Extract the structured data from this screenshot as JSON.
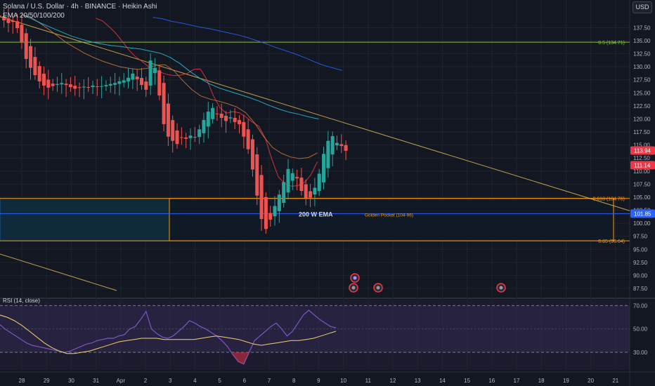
{
  "header": {
    "symbol_line": "Solana / U.S. Dollar · 4h · BINANCE · Heikin Ashi",
    "ema_line": "EMA 20/50/100/200",
    "currency": "USD"
  },
  "chart_data": {
    "type": "candlestick",
    "title": "Solana / U.S. Dollar · 4h · BINANCE · Heikin Ashi",
    "x_ticks": [
      "28",
      "29",
      "30",
      "31",
      "Apr",
      "2",
      "3",
      "4",
      "5",
      "6",
      "7",
      "8",
      "9",
      "10",
      "11",
      "12",
      "13",
      "14",
      "15",
      "16",
      "17",
      "18",
      "19",
      "20",
      "21"
    ],
    "price_ticks": [
      "137.50",
      "135.00",
      "132.50",
      "130.00",
      "127.50",
      "125.00",
      "122.50",
      "120.00",
      "117.50",
      "115.00",
      "112.50",
      "110.00",
      "107.50",
      "105.00",
      "102.50",
      "100.00",
      "97.50",
      "95.00",
      "92.50",
      "90.00",
      "87.50"
    ],
    "ylim": [
      86,
      140
    ],
    "current_price_tags": [
      {
        "value": "113.94",
        "color": "#f23645"
      },
      {
        "value": "111.14",
        "color": "#f23645"
      },
      {
        "value": "101.85",
        "color": "#2962ff"
      }
    ],
    "levels": [
      {
        "label": "0.5 (134.71)",
        "value": 134.71,
        "color": "#8bc34a"
      },
      {
        "label": "0.618 (104.76)",
        "value": 104.76,
        "color": "#ff9800"
      },
      {
        "label": "0.65 (96.64)",
        "value": 96.64,
        "color": "#ff9800"
      }
    ],
    "annotations": [
      {
        "text": "200 W EMA"
      },
      {
        "text": "Golden Pocket (104-96)"
      }
    ],
    "colors": {
      "up": "#26a69a",
      "down": "#ef5350",
      "ema20": "#f23645",
      "ema50": "#c97b3c",
      "ema100": "#26c6da",
      "ema200": "#2962ff",
      "rsi": "#7e57c2",
      "rsi_ma": "#f5d36b"
    },
    "candles_close": [
      139.6,
      138.9,
      138.4,
      138.6,
      137.4,
      134.8,
      131.5,
      129.8,
      128.4,
      127.2,
      126.4,
      126.0,
      126.3,
      126.7,
      126.9,
      126.5,
      126.1,
      125.8,
      126.0,
      126.2,
      126.1,
      126.4,
      126.2,
      126.3,
      126.5,
      126.7,
      126.9,
      127.2,
      127.4,
      127.9,
      128.7,
      127.6,
      126.5,
      125.6,
      131.2,
      129.8,
      124.5,
      119.0,
      116.6,
      115.8,
      115.2,
      116.4,
      116.2,
      116.8,
      116.5,
      118.0,
      119.8,
      121.4,
      122.1,
      121.0,
      120.2,
      119.6,
      120.3,
      119.4,
      119.0,
      116.6,
      114.2,
      110.3,
      105.3,
      100.8,
      98.9,
      100.7,
      103.3,
      105.5,
      107.9,
      110.4,
      109.6,
      108.6,
      106.2,
      104.8,
      104.9,
      106.8,
      109.5,
      113.3,
      115.8,
      116.7,
      115.4,
      114.8,
      113.9
    ],
    "ema_series": [
      {
        "name": "20",
        "values": [
          139.3,
          138.8,
          137.7,
          136.5,
          134.9,
          133.3,
          132.0,
          131.1,
          130.1,
          129.4,
          128.9,
          128.5,
          128.3,
          128.4,
          128.7,
          129.5,
          129.6,
          127.6,
          124.5,
          122.2,
          121.1,
          121.4,
          121.2,
          120.4,
          119.4,
          118.6,
          116.3,
          112.3,
          108.9,
          107.6,
          107.1,
          107.2,
          107.8,
          109.3,
          111.8
        ]
      },
      {
        "name": "50",
        "values": [
          140.0,
          139.5,
          138.4,
          137.2,
          135.9,
          134.6,
          133.6,
          132.6,
          131.8,
          131.1,
          130.5,
          130.0,
          129.7,
          129.5,
          129.7,
          130.3,
          130.4,
          129.2,
          127.3,
          125.6,
          124.4,
          123.8,
          123.4,
          122.9,
          122.3,
          121.2,
          119.2,
          116.6,
          114.5,
          113.4,
          112.7,
          112.4,
          112.6,
          113.5
        ]
      },
      {
        "name": "100",
        "values": [
          140.0,
          139.2,
          138.3,
          137.5,
          136.7,
          135.9,
          135.3,
          134.8,
          134.4,
          134.1,
          133.9,
          133.6,
          133.4,
          133.0,
          132.6,
          131.8,
          130.6,
          129.1,
          127.8,
          126.7,
          125.9,
          125.3,
          124.7,
          124.1,
          123.4,
          122.6,
          121.9,
          121.3,
          120.9,
          120.4,
          120.0
        ]
      },
      {
        "name": "200",
        "values": [
          139.5,
          139.2,
          138.7,
          138.4,
          138.0,
          137.6,
          137.3,
          136.9,
          136.5,
          136.1,
          135.6,
          135.0,
          134.4,
          133.7,
          133.1,
          132.5,
          131.8,
          131.0,
          130.3,
          129.8,
          129.3
        ]
      }
    ],
    "rsi": {
      "label": "RSI (14, close)",
      "ticks": [
        "70.00",
        "50.00",
        "30.00"
      ],
      "ylim": [
        15,
        75
      ],
      "bands": [
        70,
        30
      ],
      "values": [
        54,
        50,
        47,
        44,
        41,
        38,
        36,
        35,
        34,
        33,
        32,
        31,
        30,
        31,
        33,
        35,
        37,
        38,
        40,
        41,
        42,
        42,
        44,
        45,
        50,
        52,
        58,
        65,
        50,
        46,
        43,
        42,
        44,
        48,
        52,
        57,
        55,
        52,
        50,
        47,
        44,
        40,
        35,
        28,
        22,
        20,
        30,
        40,
        44,
        48,
        52,
        55,
        50,
        44,
        48,
        55,
        62,
        66,
        62,
        58,
        55,
        52,
        51
      ],
      "ma_values": [
        62,
        60,
        57,
        53,
        48,
        43,
        38,
        34,
        31,
        29,
        29,
        30,
        31,
        33,
        35,
        37,
        39,
        40,
        41,
        42,
        42,
        42,
        41,
        41,
        41,
        41,
        41,
        42,
        43,
        44,
        43,
        42,
        41,
        39,
        37,
        36,
        37,
        38,
        39,
        40,
        40,
        41,
        42,
        44,
        46,
        48
      ]
    }
  },
  "markers": [
    {
      "name": "earnings-flag-icon"
    },
    {
      "name": "event-dot-icon"
    },
    {
      "name": "event-dot-icon"
    },
    {
      "name": "event-dot-icon"
    }
  ]
}
